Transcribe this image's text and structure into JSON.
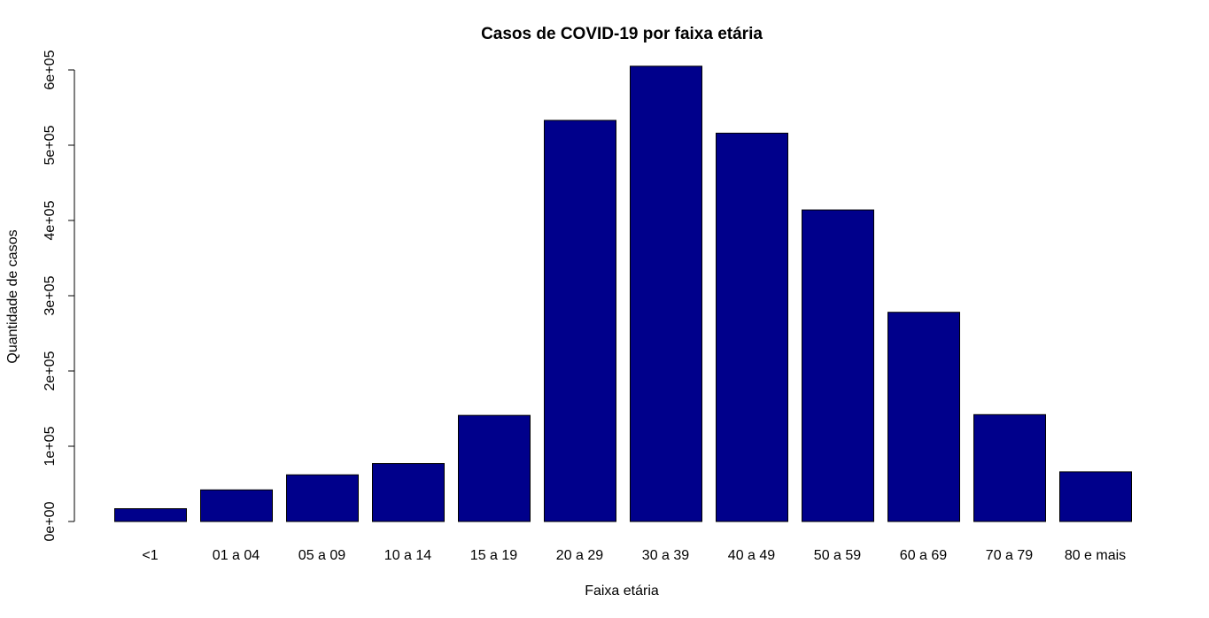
{
  "chart_data": {
    "type": "bar",
    "title": "Casos de COVID-19 por faixa etária",
    "xlabel": "Faixa etária",
    "ylabel": "Quantidade de casos",
    "categories": [
      "<1",
      "01 a 04",
      "05 a 09",
      "10 a 14",
      "15 a 19",
      "20 a 29",
      "30 a 39",
      "40 a 49",
      "50 a 59",
      "60 a 69",
      "70 a 79",
      "80 e mais"
    ],
    "values": [
      17000,
      42000,
      62000,
      77000,
      141000,
      533000,
      605000,
      516000,
      414000,
      278000,
      142000,
      66000
    ],
    "yticks": [
      0,
      100000,
      200000,
      300000,
      400000,
      500000,
      600000
    ],
    "ytick_labels": [
      "0e+00",
      "1e+05",
      "2e+05",
      "3e+05",
      "4e+05",
      "5e+05",
      "6e+05"
    ],
    "ylim": [
      0,
      605000
    ],
    "bar_color": "#00008B",
    "grid": false,
    "legend": "none"
  }
}
